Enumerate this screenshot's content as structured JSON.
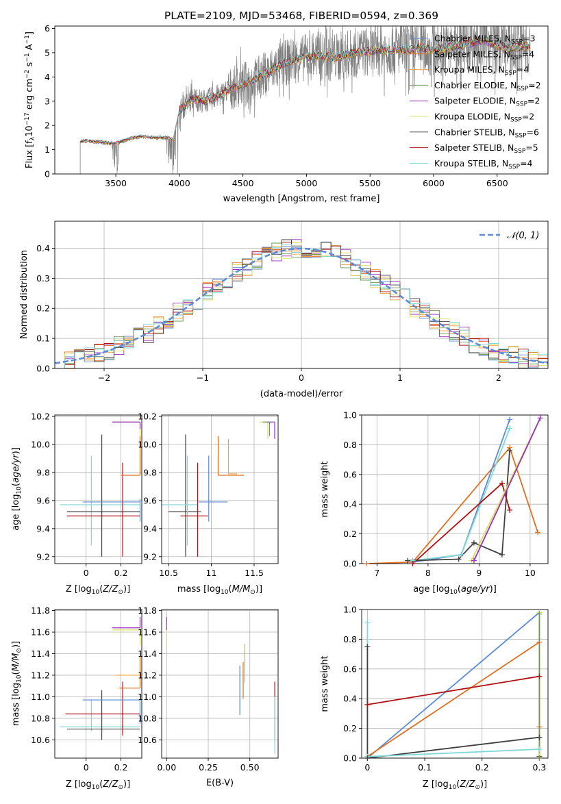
{
  "figure": {
    "title": "PLATE=2109, MJD=53468, FIBERID=0594, z=0.369",
    "colors": {
      "Chabrier MILES": "#5b8ad6",
      "Salpeter MILES": "#e07020",
      "Kroupa MILES": "#f0a040",
      "Chabrier ELODIE": "#6a9a5a",
      "Salpeter ELODIE": "#9b30c0",
      "Kroupa ELODIE": "#d8e060",
      "Chabrier STELIB": "#404040",
      "Salpeter STELIB": "#b01010",
      "Kroupa STELIB": "#80d8d8"
    }
  },
  "chart_data": [
    {
      "id": "spectrum",
      "type": "line",
      "xlabel": "wavelength [Angstrom, rest frame]",
      "ylabel_parts": [
        "Flux [f",
        "λ",
        "10",
        "−17",
        " erg cm",
        "−2",
        " s",
        "−1",
        " A",
        "−1",
        "]"
      ],
      "xlim": [
        3020,
        6900
      ],
      "ylim": [
        0,
        6.1
      ],
      "xticks": [
        3500,
        4000,
        4500,
        5000,
        5500,
        6000,
        6500
      ],
      "yticks": [
        0,
        1,
        2,
        3,
        4,
        5,
        6
      ],
      "legend_position": "upper-right",
      "legend": [
        {
          "label": "Chabrier MILES, N",
          "sub": "SSP",
          "suffix": "=3",
          "key": "Chabrier MILES"
        },
        {
          "label": "Salpeter MILES, N",
          "sub": "SSP",
          "suffix": "=4",
          "key": "Salpeter MILES"
        },
        {
          "label": "Kroupa MILES, N",
          "sub": "SSP",
          "suffix": "=4",
          "key": "Kroupa MILES"
        },
        {
          "label": "Chabrier ELODIE, N",
          "sub": "SSP",
          "suffix": "=2",
          "key": "Chabrier ELODIE"
        },
        {
          "label": "Salpeter ELODIE, N",
          "sub": "SSP",
          "suffix": "=2",
          "key": "Salpeter ELODIE"
        },
        {
          "label": "Kroupa ELODIE, N",
          "sub": "SSP",
          "suffix": "=2",
          "key": "Kroupa ELODIE"
        },
        {
          "label": "Chabrier STELIB, N",
          "sub": "SSP",
          "suffix": "=6",
          "key": "Chabrier STELIB"
        },
        {
          "label": "Salpeter STELIB, N",
          "sub": "SSP",
          "suffix": "=5",
          "key": "Salpeter STELIB"
        },
        {
          "label": "Kroupa STELIB, N",
          "sub": "SSP",
          "suffix": "=4",
          "key": "Kroupa STELIB"
        }
      ],
      "continuum": [
        [
          3220,
          1.35
        ],
        [
          3300,
          1.35
        ],
        [
          3400,
          1.3
        ],
        [
          3500,
          1.25
        ],
        [
          3600,
          1.45
        ],
        [
          3700,
          1.55
        ],
        [
          3800,
          1.5
        ],
        [
          3900,
          1.5
        ],
        [
          3950,
          1.4
        ],
        [
          4000,
          2.6
        ],
        [
          4100,
          3.1
        ],
        [
          4200,
          3.0
        ],
        [
          4300,
          3.2
        ],
        [
          4400,
          3.5
        ],
        [
          4500,
          3.7
        ],
        [
          4600,
          3.9
        ],
        [
          4700,
          4.2
        ],
        [
          4800,
          4.5
        ],
        [
          4900,
          4.7
        ],
        [
          5000,
          4.8
        ],
        [
          5100,
          4.9
        ],
        [
          5200,
          4.8
        ],
        [
          5300,
          4.9
        ],
        [
          5400,
          5.0
        ],
        [
          5500,
          5.05
        ],
        [
          5600,
          5.1
        ],
        [
          5700,
          5.15
        ],
        [
          5800,
          5.1
        ],
        [
          5900,
          5.2
        ],
        [
          6000,
          5.1
        ],
        [
          6100,
          5.2
        ],
        [
          6200,
          5.3
        ],
        [
          6300,
          5.4
        ],
        [
          6400,
          5.5
        ],
        [
          6500,
          5.3
        ],
        [
          6600,
          5.2
        ],
        [
          6700,
          5.25
        ],
        [
          6760,
          5.25
        ]
      ]
    },
    {
      "id": "residuals",
      "type": "step",
      "xlabel": "(data-model)/error",
      "ylabel": "Normed distribution",
      "xlim": [
        -2.5,
        2.5
      ],
      "ylim": [
        0,
        0.49
      ],
      "xticks": [
        -2,
        -1,
        0,
        1,
        2
      ],
      "yticks": [
        0.0,
        0.1,
        0.2,
        0.3,
        0.4
      ],
      "grid": true,
      "legend_position": "upper-right",
      "legend": [
        "𝒩(0, 1)"
      ],
      "gaussian": {
        "mean": 0,
        "sigma": 1
      }
    },
    {
      "id": "age-vs-Z",
      "type": "errorbar",
      "xlabel_text": "Z [log",
      "xlabel_sub": "10",
      "xlabel_rest": "(Z/Z",
      "xlabel_sun": "⊙",
      "xlabel_end": ")]",
      "ylabel": "age  [log10(age/yr)]",
      "xlim": [
        -0.18,
        0.32
      ],
      "ylim": [
        9.15,
        10.21
      ],
      "xticks": [
        0.0,
        0.2
      ],
      "yticks": [
        9.2,
        9.4,
        9.6,
        9.8,
        10.0,
        10.2
      ],
      "grid": true,
      "points": [
        {
          "key": "Kroupa STELIB",
          "x": 0.03,
          "xerr": [
            0.18,
            0.28
          ],
          "y": 9.57,
          "yerr": [
            0.29,
            0.35
          ]
        },
        {
          "key": "Chabrier STELIB",
          "x": 0.09,
          "xerr": [
            0.2,
            0.22
          ],
          "y": 9.52,
          "yerr": [
            0.32,
            0.55
          ]
        },
        {
          "key": "Salpeter STELIB",
          "x": 0.21,
          "xerr": [
            0.32,
            0.1
          ],
          "y": 9.49,
          "yerr": [
            0.29,
            0.38
          ]
        },
        {
          "key": "Chabrier MILES",
          "x": 0.31,
          "xerr": [
            0.33,
            0.0
          ],
          "y": 9.59,
          "yerr": [
            0.14,
            0.02
          ]
        },
        {
          "key": "Salpeter MILES",
          "x": 0.31,
          "xerr": [
            0.11,
            0.0
          ],
          "y": 9.78,
          "yerr": [
            0.0,
            0.28
          ]
        },
        {
          "key": "Kroupa ELODIE",
          "x": 0.31,
          "xerr": [
            0.16,
            0.0
          ],
          "y": 10.16,
          "yerr": [
            0.1,
            0.0
          ]
        },
        {
          "key": "Salpeter ELODIE",
          "x": 0.31,
          "xerr": [
            0.16,
            0.0
          ],
          "y": 10.16,
          "yerr": [
            0.05,
            0.0
          ]
        }
      ]
    },
    {
      "id": "age-vs-mass",
      "type": "errorbar",
      "xlabel": "mass [log10(M/M⊙)]",
      "xlim": [
        10.42,
        11.78
      ],
      "ylim": [
        9.15,
        10.21
      ],
      "xticks": [
        10.5,
        11.0,
        11.5
      ],
      "yticks": [
        9.2,
        9.4,
        9.6,
        9.8,
        10.0,
        10.2
      ],
      "grid": true,
      "points": [
        {
          "key": "Chabrier STELIB",
          "x": 10.7,
          "xerr": [
            0.2,
            0.18
          ],
          "y": 9.52,
          "yerr": [
            0.32,
            0.55
          ]
        },
        {
          "key": "Kroupa STELIB",
          "x": 10.72,
          "xerr": [
            0.3,
            0.12
          ],
          "y": 9.57,
          "yerr": [
            0.29,
            0.35
          ]
        },
        {
          "key": "Salpeter STELIB",
          "x": 10.84,
          "xerr": [
            0.2,
            0.12
          ],
          "y": 9.49,
          "yerr": [
            0.29,
            0.38
          ]
        },
        {
          "key": "Chabrier MILES",
          "x": 10.97,
          "xerr": [
            0.12,
            0.22
          ],
          "y": 9.59,
          "yerr": [
            0.14,
            0.33
          ]
        },
        {
          "key": "Salpeter MILES",
          "x": 11.08,
          "xerr": [
            0.0,
            0.3
          ],
          "y": 9.78,
          "yerr": [
            0.0,
            0.28
          ]
        },
        {
          "key": "Kroupa MILES",
          "x": 11.2,
          "xerr": [
            0.0,
            0.1
          ],
          "y": 9.79,
          "yerr": [
            0.0,
            0.25
          ]
        },
        {
          "key": "Kroupa ELODIE",
          "x": 11.66,
          "xerr": [
            0.1,
            0.0
          ],
          "y": 10.16,
          "yerr": [
            0.12,
            0.0
          ]
        },
        {
          "key": "Salpeter ELODIE",
          "x": 11.74,
          "xerr": [
            0.1,
            0.0
          ],
          "y": 10.16,
          "yerr": [
            0.12,
            0.0
          ]
        },
        {
          "key": "Chabrier ELODIE",
          "x": 11.68,
          "xerr": [
            0.08,
            0.0
          ],
          "y": 10.16,
          "yerr": [
            0.1,
            0.0
          ]
        }
      ]
    },
    {
      "id": "weight-vs-age",
      "type": "line",
      "xlabel": "age  [log10(age/yr)]",
      "ylabel": "mass weight",
      "xlim": [
        6.7,
        10.35
      ],
      "ylim": [
        0,
        1.0
      ],
      "xticks": [
        7,
        8,
        9,
        10
      ],
      "yticks": [
        0.0,
        0.2,
        0.4,
        0.6,
        0.8,
        1.0
      ],
      "grid": true,
      "series": [
        {
          "key": "Salpeter MILES",
          "x": [
            6.8,
            7.7,
            9.6,
            10.15
          ],
          "y": [
            0.0,
            0.01,
            0.78,
            0.21
          ]
        },
        {
          "key": "Chabrier MILES",
          "x": [
            7.7,
            8.65,
            9.6
          ],
          "y": [
            0.01,
            0.06,
            0.97
          ]
        },
        {
          "key": "Kroupa STELIB",
          "x": [
            7.7,
            8.65,
            9.6
          ],
          "y": [
            0.02,
            0.06,
            0.91
          ]
        },
        {
          "key": "Chabrier STELIB",
          "x": [
            7.6,
            8.6,
            8.9,
            9.45,
            9.6
          ],
          "y": [
            0.02,
            0.03,
            0.14,
            0.06,
            0.76
          ]
        },
        {
          "key": "Salpeter STELIB",
          "x": [
            7.7,
            9.45,
            9.6
          ],
          "y": [
            0.0,
            0.54,
            0.36
          ]
        },
        {
          "key": "Kroupa ELODIE",
          "x": [
            8.85,
            10.2
          ],
          "y": [
            0.02,
            0.98
          ]
        },
        {
          "key": "Salpeter ELODIE",
          "x": [
            8.9,
            10.2
          ],
          "y": [
            0.02,
            0.98
          ]
        }
      ]
    },
    {
      "id": "mass-vs-Z",
      "type": "errorbar",
      "xlabel": "Z [log10(Z/Z⊙)]",
      "ylabel": "mass [log10(M/M⊙)]",
      "xlim": [
        -0.18,
        0.32
      ],
      "ylim": [
        10.43,
        11.81
      ],
      "xticks": [
        0.0,
        0.2
      ],
      "yticks": [
        10.6,
        10.8,
        11.0,
        11.2,
        11.4,
        11.6,
        11.8
      ],
      "grid": true,
      "points": [
        {
          "key": "Kroupa STELIB",
          "x": 0.03,
          "xerr": [
            0.18,
            0.28
          ],
          "y": 10.72,
          "yerr": [
            0.04,
            0.25
          ]
        },
        {
          "key": "Chabrier STELIB",
          "x": 0.09,
          "xerr": [
            0.2,
            0.22
          ],
          "y": 10.7,
          "yerr": [
            0.1,
            0.36
          ]
        },
        {
          "key": "Salpeter STELIB",
          "x": 0.21,
          "xerr": [
            0.33,
            0.1
          ],
          "y": 10.84,
          "yerr": [
            0.2,
            0.3
          ]
        },
        {
          "key": "Chabrier MILES",
          "x": 0.31,
          "xerr": [
            0.33,
            0.0
          ],
          "y": 10.97,
          "yerr": [
            0.22,
            0.0
          ]
        },
        {
          "key": "Salpeter MILES",
          "x": 0.31,
          "xerr": [
            0.12,
            0.0
          ],
          "y": 11.08,
          "yerr": [
            0.0,
            0.3
          ]
        },
        {
          "key": "Salpeter ELODIE",
          "x": 0.31,
          "xerr": [
            0.16,
            0.0
          ],
          "y": 11.64,
          "yerr": [
            0.0,
            0.1
          ]
        },
        {
          "key": "Kroupa ELODIE",
          "x": 0.31,
          "xerr": [
            0.16,
            0.0
          ],
          "y": 11.62,
          "yerr": [
            0.14,
            0.0
          ]
        },
        {
          "key": "Kroupa MILES",
          "x": 0.31,
          "xerr": [
            0.14,
            0.0
          ],
          "y": 11.2,
          "yerr": [
            0.0,
            0.0
          ]
        }
      ]
    },
    {
      "id": "mass-vs-EBV",
      "type": "errorbar",
      "xlabel": "E(B-V)",
      "xlim": [
        -0.03,
        0.67
      ],
      "ylim": [
        10.43,
        11.81
      ],
      "xticks": [
        0.0,
        0.25,
        0.5
      ],
      "xticklabels": [
        "0.00",
        "0.25",
        "0.50"
      ],
      "yticks": [
        10.6,
        10.8,
        11.0,
        11.2,
        11.4,
        11.6,
        11.8
      ],
      "grid": true,
      "points": [
        {
          "key": "Kroupa ELODIE",
          "x": 0.0,
          "xerr": [
            0,
            0
          ],
          "y": 11.55,
          "yerr": [
            0.08,
            0.08
          ]
        },
        {
          "key": "Salpeter ELODIE",
          "x": 0.0,
          "xerr": [
            0,
            0
          ],
          "y": 11.68,
          "yerr": [
            0.06,
            0.06
          ]
        },
        {
          "key": "Chabrier MILES",
          "x": 0.44,
          "xerr": [
            0,
            0
          ],
          "y": 11.05,
          "yerr": [
            0.22,
            0.24
          ]
        },
        {
          "key": "Salpeter MILES",
          "x": 0.46,
          "xerr": [
            0,
            0
          ],
          "y": 11.15,
          "yerr": [
            0.17,
            0.17
          ]
        },
        {
          "key": "Kroupa MILES",
          "x": 0.47,
          "xerr": [
            0,
            0
          ],
          "y": 11.25,
          "yerr": [
            0.12,
            0.24
          ]
        },
        {
          "key": "Salpeter STELIB",
          "x": 0.65,
          "xerr": [
            0,
            0
          ],
          "y": 10.9,
          "yerr": [
            0.3,
            0.24
          ]
        },
        {
          "key": "Kroupa STELIB",
          "x": 0.65,
          "xerr": [
            0,
            0
          ],
          "y": 10.72,
          "yerr": [
            0.25,
            0.28
          ]
        }
      ]
    },
    {
      "id": "weight-vs-Z",
      "type": "line",
      "xlabel": "Z [log10(Z/Z⊙)]",
      "ylabel": "mass weight",
      "xlim": [
        -0.01,
        0.315
      ],
      "ylim": [
        0,
        1.0
      ],
      "xticks": [
        0.0,
        0.1,
        0.2,
        0.3
      ],
      "yticks": [
        0.0,
        0.2,
        0.4,
        0.6,
        0.8,
        1.0
      ],
      "grid": true,
      "series": [
        {
          "key": "Chabrier MILES",
          "x": [
            0.0,
            0.3
          ],
          "y": [
            0.0,
            0.98
          ]
        },
        {
          "key": "Salpeter MILES",
          "x": [
            0.0,
            0.3,
            0.3
          ],
          "y": [
            0.01,
            0.78,
            0.21
          ]
        },
        {
          "key": "Salpeter STELIB",
          "x": [
            0.0,
            0.3,
            0.3
          ],
          "y": [
            0.36,
            0.55,
            0.0
          ]
        },
        {
          "key": "Chabrier STELIB",
          "x": [
            0.0,
            0.3,
            0.3
          ],
          "y": [
            0.0,
            0.14,
            0.01
          ]
        },
        {
          "key": "Kroupa STELIB",
          "x": [
            0.0,
            0.3
          ],
          "y": [
            0.01,
            0.06
          ]
        },
        {
          "key": "Kroupa ELODIE",
          "x": [
            0.3,
            0.3
          ],
          "y": [
            0.02,
            0.98
          ]
        },
        {
          "key": "Chabrier ELODIE",
          "x": [
            0.3,
            0.3
          ],
          "y": [
            0.0,
            0.97
          ]
        },
        {
          "key": "Kroupa STELIB",
          "x": [
            0.0,
            0.0
          ],
          "y": [
            0.0,
            0.91
          ]
        },
        {
          "key": "Chabrier STELIB",
          "x": [
            0.0,
            0.0
          ],
          "y": [
            0.0,
            0.75
          ]
        }
      ]
    }
  ]
}
